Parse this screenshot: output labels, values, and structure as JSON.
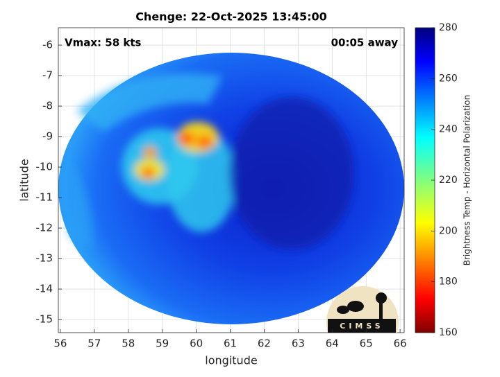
{
  "chart_data": {
    "type": "image",
    "title": "Chenge: 22-Oct-2025 13:45:00",
    "x_label": "longitude",
    "y_label": "latitude",
    "annotations": [
      "Vmax: 58 kts",
      "00:05 away"
    ],
    "logo": "CIMSS",
    "xlim": [
      55.94,
      66.12
    ],
    "xticks": [
      56,
      57,
      58,
      59,
      60,
      61,
      62,
      63,
      64,
      65,
      66
    ],
    "ylim": [
      -15.43,
      -5.43
    ],
    "yticks": [
      -15,
      -14,
      -13,
      -12,
      -11,
      -10,
      -9,
      -8,
      -7,
      -6
    ],
    "grid": true,
    "colorbar": {
      "label": "Brightness Temp - Horizontal Polarization",
      "lim": [
        160,
        280
      ],
      "ticks": [
        160,
        180,
        200,
        220,
        240,
        260,
        280
      ]
    }
  }
}
